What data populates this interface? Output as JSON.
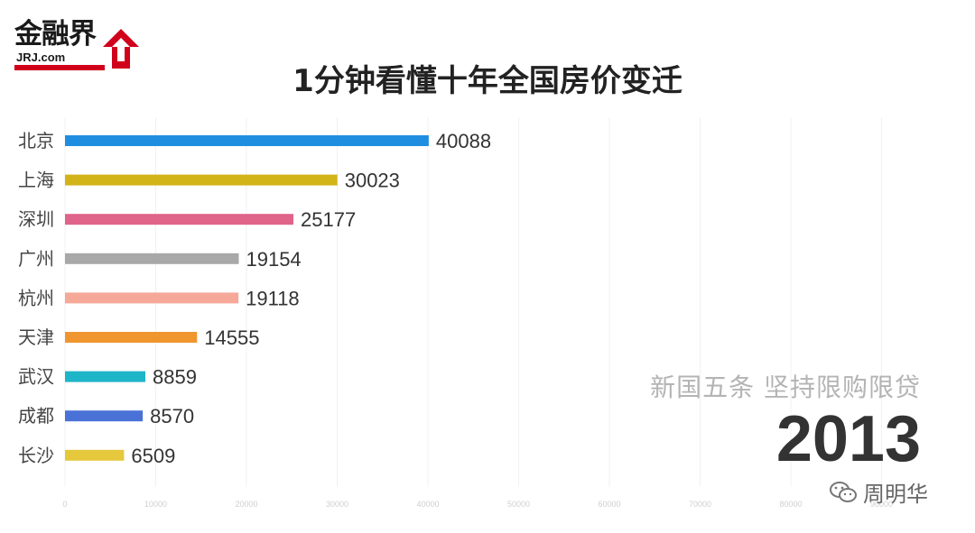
{
  "logo": {
    "brand_cn": "金融界",
    "brand_en": "JRJ.com",
    "brand_color": "#d0021b"
  },
  "title": "1分钟看懂十年全国房价变迁",
  "policy_caption": "新国五条 坚持限购限贷",
  "year": "2013",
  "watermark": {
    "icon": "wechat-icon",
    "text": "周明华"
  },
  "chart_data": {
    "type": "bar",
    "orientation": "horizontal",
    "categories": [
      "北京",
      "上海",
      "深圳",
      "广州",
      "杭州",
      "天津",
      "武汉",
      "成都",
      "长沙"
    ],
    "values": [
      40088,
      30023,
      25177,
      19154,
      19118,
      14555,
      8859,
      8570,
      6509
    ],
    "colors": [
      "#1f8ee0",
      "#d2b419",
      "#e0638a",
      "#a8a8a8",
      "#f6a899",
      "#f0962f",
      "#1eb5c8",
      "#4a72d6",
      "#e6c83c"
    ],
    "xlim": [
      0,
      90000
    ],
    "xticks": [
      0,
      10000,
      20000,
      30000,
      40000,
      50000,
      60000,
      70000,
      80000,
      90000
    ],
    "grid": true,
    "legend": "none"
  }
}
